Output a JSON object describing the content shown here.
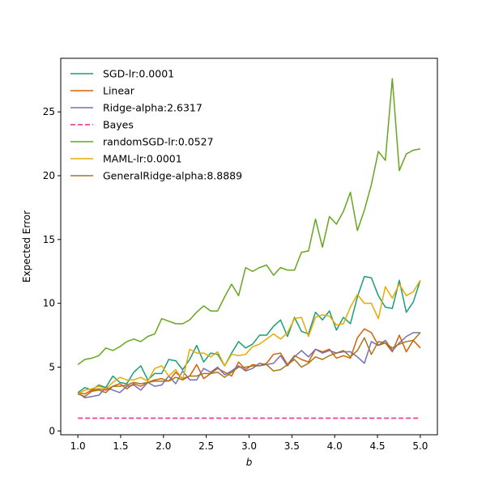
{
  "chart_data": {
    "type": "line",
    "title": "",
    "xlabel": "b",
    "ylabel": "Expected Error",
    "xlim": [
      0.8,
      5.2
    ],
    "ylim": [
      -0.3,
      29.2
    ],
    "xticks": [
      1.0,
      1.5,
      2.0,
      2.5,
      3.0,
      3.5,
      4.0,
      4.5,
      5.0
    ],
    "xtick_labels": [
      "1.0",
      "1.5",
      "2.0",
      "2.5",
      "3.0",
      "3.5",
      "4.0",
      "4.5",
      "5.0"
    ],
    "yticks": [
      0,
      5,
      10,
      15,
      20,
      25
    ],
    "ytick_labels": [
      "0",
      "5",
      "10",
      "15",
      "20",
      "25"
    ],
    "grid": false,
    "legend_position": "top-left",
    "x": [
      1.0,
      1.0816,
      1.1633,
      1.2449,
      1.3265,
      1.4082,
      1.4898,
      1.5714,
      1.6531,
      1.7347,
      1.8163,
      1.898,
      1.9796,
      2.0612,
      2.1429,
      2.2245,
      2.3061,
      2.3878,
      2.4694,
      2.551,
      2.6327,
      2.7143,
      2.7959,
      2.8776,
      2.9592,
      3.0408,
      3.1224,
      3.2041,
      3.2857,
      3.3673,
      3.449,
      3.5306,
      3.6122,
      3.6939,
      3.7755,
      3.8571,
      3.9388,
      4.0204,
      4.102,
      4.1837,
      4.2653,
      4.3469,
      4.4286,
      4.5102,
      4.5918,
      4.6735,
      4.7551,
      4.8367,
      4.9184,
      5.0
    ],
    "series": [
      {
        "name": "SGD-lr:0.0001",
        "color": "#1b9e77",
        "dash": "solid",
        "values": [
          3.0,
          3.4,
          3.2,
          3.6,
          3.4,
          4.3,
          3.8,
          3.7,
          4.6,
          5.1,
          4.0,
          4.5,
          4.5,
          5.6,
          5.5,
          4.8,
          5.6,
          6.7,
          5.4,
          6.1,
          6.0,
          5.1,
          6.1,
          7.0,
          6.5,
          6.8,
          7.5,
          7.5,
          8.2,
          8.7,
          7.4,
          8.9,
          7.8,
          7.6,
          9.3,
          8.7,
          9.4,
          7.9,
          8.9,
          8.4,
          10.5,
          12.1,
          12.0,
          10.6,
          9.7,
          9.6,
          11.8,
          9.3,
          10.1,
          11.8
        ]
      },
      {
        "name": "Linear",
        "color": "#d95f02",
        "dash": "solid",
        "values": [
          3.0,
          2.9,
          3.2,
          3.3,
          3.2,
          3.5,
          3.7,
          3.3,
          3.7,
          3.5,
          3.8,
          4.0,
          4.1,
          3.9,
          4.6,
          4.1,
          4.3,
          5.2,
          4.1,
          4.5,
          4.9,
          4.6,
          4.3,
          5.4,
          4.8,
          5.2,
          5.1,
          5.3,
          6.0,
          6.1,
          5.2,
          5.9,
          5.6,
          5.4,
          6.4,
          6.2,
          6.4,
          5.7,
          5.9,
          5.7,
          7.3,
          8.0,
          7.7,
          6.7,
          6.9,
          6.2,
          7.5,
          6.2,
          7.1,
          6.5
        ]
      },
      {
        "name": "Ridge-alpha:2.6317",
        "color": "#7570b3",
        "dash": "solid",
        "values": [
          3.0,
          2.6,
          2.7,
          2.8,
          3.4,
          3.2,
          3.0,
          3.5,
          3.6,
          3.2,
          3.8,
          3.5,
          3.6,
          4.3,
          3.7,
          4.7,
          4.0,
          4.0,
          4.9,
          4.6,
          5.0,
          4.4,
          4.7,
          5.1,
          4.7,
          4.9,
          5.3,
          5.2,
          5.3,
          5.9,
          5.1,
          5.8,
          6.3,
          5.8,
          6.4,
          6.1,
          6.3,
          6.1,
          6.2,
          6.2,
          5.8,
          5.3,
          7.0,
          6.7,
          7.1,
          6.3,
          6.9,
          7.4,
          7.7,
          7.7
        ]
      },
      {
        "name": "Bayes",
        "color": "#e7298a",
        "dash": "dashed",
        "values": [
          1.0,
          1.0,
          1.0,
          1.0,
          1.0,
          1.0,
          1.0,
          1.0,
          1.0,
          1.0,
          1.0,
          1.0,
          1.0,
          1.0,
          1.0,
          1.0,
          1.0,
          1.0,
          1.0,
          1.0,
          1.0,
          1.0,
          1.0,
          1.0,
          1.0,
          1.0,
          1.0,
          1.0,
          1.0,
          1.0,
          1.0,
          1.0,
          1.0,
          1.0,
          1.0,
          1.0,
          1.0,
          1.0,
          1.0,
          1.0,
          1.0,
          1.0,
          1.0,
          1.0,
          1.0,
          1.0,
          1.0,
          1.0,
          1.0,
          1.0
        ]
      },
      {
        "name": "randomSGD-lr:0.0527",
        "color": "#66a61e",
        "dash": "solid",
        "values": [
          5.2,
          5.6,
          5.7,
          5.9,
          6.5,
          6.3,
          6.6,
          7.0,
          7.2,
          7.0,
          7.4,
          7.6,
          8.8,
          8.6,
          8.4,
          8.4,
          8.7,
          9.3,
          9.8,
          9.4,
          9.4,
          10.5,
          11.5,
          10.6,
          12.8,
          12.5,
          12.8,
          13.0,
          12.2,
          12.8,
          12.6,
          12.6,
          14.0,
          14.1,
          16.6,
          14.4,
          16.8,
          16.2,
          17.2,
          18.7,
          15.7,
          17.3,
          19.3,
          21.9,
          21.2,
          27.6,
          20.4,
          21.7,
          22.0,
          22.1
        ]
      },
      {
        "name": "MAML-lr:0.0001",
        "color": "#e6ab02",
        "dash": "solid",
        "values": [
          2.9,
          3.2,
          3.3,
          3.5,
          3.3,
          3.8,
          4.2,
          4.0,
          4.0,
          4.2,
          3.9,
          4.9,
          5.1,
          4.3,
          4.8,
          4.0,
          6.4,
          6.1,
          6.1,
          5.8,
          6.2,
          5.1,
          6.0,
          5.9,
          6.0,
          6.6,
          6.8,
          7.2,
          7.6,
          7.2,
          7.7,
          8.8,
          8.9,
          7.4,
          8.9,
          9.1,
          9.0,
          8.3,
          8.4,
          9.7,
          10.7,
          10.0,
          10.0,
          8.8,
          11.3,
          10.4,
          11.5,
          10.6,
          10.9,
          11.8
        ]
      },
      {
        "name": "GeneralRidge-alpha:8.8889",
        "color": "#a6761d",
        "dash": "solid",
        "values": [
          2.9,
          2.7,
          3.1,
          3.2,
          3.0,
          3.5,
          3.5,
          3.6,
          3.8,
          3.7,
          3.8,
          3.9,
          3.9,
          3.9,
          4.2,
          4.0,
          4.3,
          4.3,
          4.5,
          4.5,
          4.6,
          4.2,
          4.6,
          5.0,
          5.0,
          5.1,
          5.1,
          5.2,
          4.7,
          4.8,
          5.2,
          5.6,
          5.0,
          5.3,
          5.8,
          5.6,
          5.9,
          6.1,
          6.3,
          5.8,
          6.3,
          7.3,
          6.0,
          7.0,
          6.9,
          6.5,
          6.8,
          7.0,
          7.1,
          7.7
        ]
      }
    ]
  }
}
